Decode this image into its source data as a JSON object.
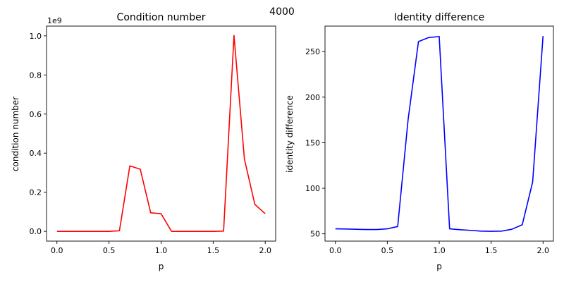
{
  "figure": {
    "suptitle": "4000"
  },
  "chart_data": [
    {
      "type": "line",
      "title": "Condition number",
      "xlabel": "p",
      "ylabel": "condition number",
      "offset_text": "1e9",
      "color": "#ff0000",
      "xlim": [
        -0.1,
        2.1
      ],
      "ylim": [
        -0.05,
        1.05
      ],
      "xticks": [
        0.0,
        0.5,
        1.0,
        1.5,
        2.0
      ],
      "xtick_labels": [
        "0.0",
        "0.5",
        "1.0",
        "1.5",
        "2.0"
      ],
      "yticks": [
        0.0,
        0.2,
        0.4,
        0.6,
        0.8,
        1.0
      ],
      "ytick_labels": [
        "0.0",
        "0.2",
        "0.4",
        "0.6",
        "0.8",
        "1.0"
      ],
      "grid": false,
      "x": [
        0.0,
        0.1,
        0.2,
        0.3,
        0.4,
        0.5,
        0.6,
        0.7,
        0.8,
        0.9,
        1.0,
        1.1,
        1.2,
        1.3,
        1.4,
        1.5,
        1.6,
        1.7,
        1.8,
        1.9,
        2.0
      ],
      "y": [
        0.0,
        0.0,
        0.0,
        0.0,
        0.0,
        0.0,
        0.003,
        0.335,
        0.318,
        0.095,
        0.09,
        0.0,
        0.0,
        0.0,
        0.0,
        0.0,
        0.001,
        1.002,
        0.37,
        0.138,
        0.09
      ]
    },
    {
      "type": "line",
      "title": "Identity difference",
      "xlabel": "p",
      "ylabel": "identity difference",
      "color": "#0000ff",
      "xlim": [
        -0.1,
        2.1
      ],
      "ylim": [
        42,
        278
      ],
      "xticks": [
        0.0,
        0.5,
        1.0,
        1.5,
        2.0
      ],
      "xtick_labels": [
        "0.0",
        "0.5",
        "1.0",
        "1.5",
        "2.0"
      ],
      "yticks": [
        50,
        100,
        150,
        200,
        250
      ],
      "ytick_labels": [
        "50",
        "100",
        "150",
        "200",
        "250"
      ],
      "grid": false,
      "x": [
        0.0,
        0.1,
        0.2,
        0.3,
        0.4,
        0.5,
        0.6,
        0.7,
        0.8,
        0.9,
        1.0,
        1.1,
        1.2,
        1.3,
        1.4,
        1.5,
        1.6,
        1.7,
        1.8,
        1.9,
        2.0
      ],
      "y": [
        55.5,
        55.3,
        55.0,
        54.7,
        54.7,
        55.5,
        58.0,
        175.0,
        261.0,
        265.5,
        266.5,
        55.5,
        54.5,
        53.8,
        53.0,
        52.8,
        53.0,
        55.0,
        60.0,
        107.0,
        267.0
      ]
    }
  ]
}
